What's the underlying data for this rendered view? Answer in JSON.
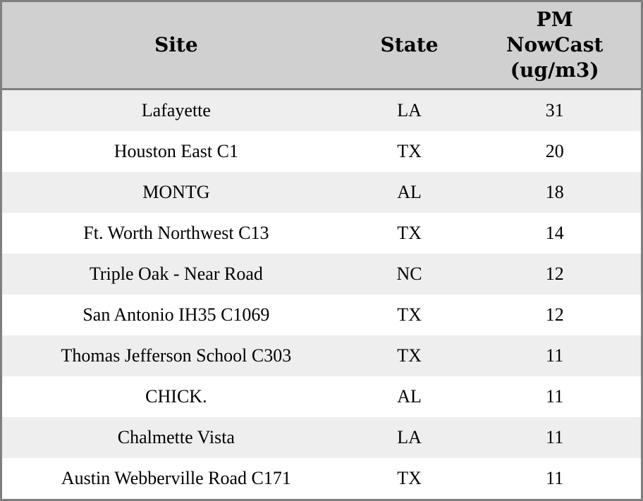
{
  "table": {
    "columns": [
      {
        "key": "site",
        "label": "Site"
      },
      {
        "key": "state",
        "label": "State"
      },
      {
        "key": "pm",
        "label": "PM\nNowCast\n(ug/m3)"
      }
    ],
    "rows": [
      {
        "site": "Lafayette",
        "state": "LA",
        "pm": "31"
      },
      {
        "site": "Houston East C1",
        "state": "TX",
        "pm": "20"
      },
      {
        "site": "MONTG",
        "state": "AL",
        "pm": "18"
      },
      {
        "site": "Ft. Worth Northwest C13",
        "state": "TX",
        "pm": "14"
      },
      {
        "site": "Triple Oak - Near Road",
        "state": "NC",
        "pm": "12"
      },
      {
        "site": "San Antonio IH35 C1069",
        "state": "TX",
        "pm": "12"
      },
      {
        "site": "Thomas Jefferson School C303",
        "state": "TX",
        "pm": "11"
      },
      {
        "site": "CHICK.",
        "state": "AL",
        "pm": "11"
      },
      {
        "site": "Chalmette Vista",
        "state": "LA",
        "pm": "11"
      },
      {
        "site": "Austin Webberville Road C171",
        "state": "TX",
        "pm": "11"
      }
    ]
  },
  "colors": {
    "header_bg": "#d0d0d0",
    "row_stripe": "#eeeeee",
    "row_plain": "#ffffff",
    "border": "#7f7f7f",
    "text": "#000000"
  },
  "chart_data": {
    "type": "table",
    "title": "",
    "columns": [
      "Site",
      "State",
      "PM NowCast (ug/m3)"
    ],
    "rows": [
      [
        "Lafayette",
        "LA",
        31
      ],
      [
        "Houston East C1",
        "TX",
        20
      ],
      [
        "MONTG",
        "AL",
        18
      ],
      [
        "Ft. Worth Northwest C13",
        "TX",
        14
      ],
      [
        "Triple Oak - Near Road",
        "NC",
        12
      ],
      [
        "San Antonio IH35 C1069",
        "TX",
        12
      ],
      [
        "Thomas Jefferson School C303",
        "TX",
        11
      ],
      [
        "CHICK.",
        "AL",
        11
      ],
      [
        "Chalmette Vista",
        "LA",
        11
      ],
      [
        "Austin Webberville Road C171",
        "TX",
        11
      ]
    ]
  }
}
